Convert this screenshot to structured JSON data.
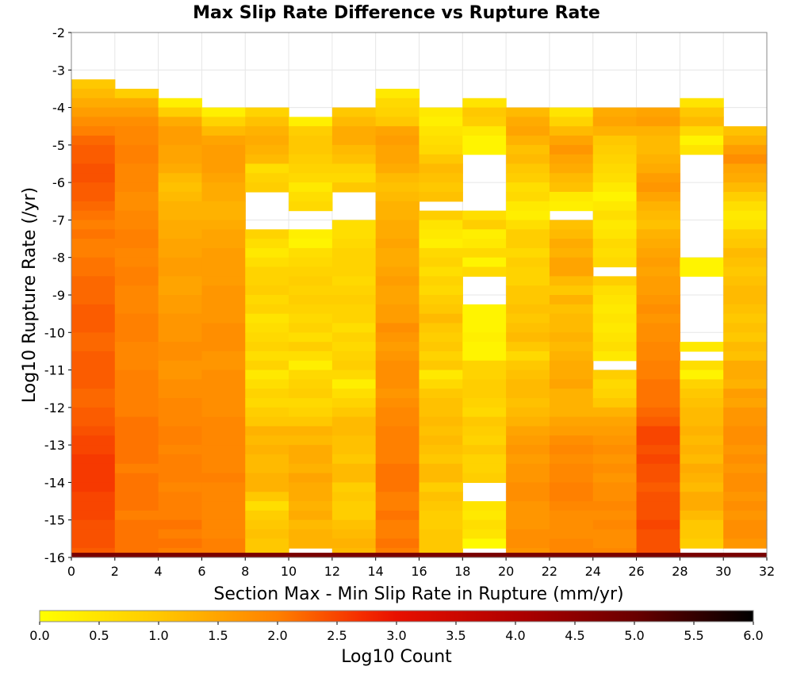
{
  "chart_data": {
    "type": "heatmap",
    "title": "Max Slip Rate Difference vs Rupture Rate",
    "xlabel": "Section Max - Min Slip Rate in Rupture (mm/yr)",
    "ylabel": "Log10 Rupture Rate (/yr)",
    "xlim": [
      0,
      32
    ],
    "ylim": [
      -16,
      -2
    ],
    "x_ticks": [
      "0",
      "2",
      "4",
      "6",
      "8",
      "10",
      "12",
      "14",
      "16",
      "18",
      "20",
      "22",
      "24",
      "26",
      "28",
      "30",
      "32"
    ],
    "y_ticks": [
      "-2",
      "-3",
      "-4",
      "-5",
      "-6",
      "-7",
      "-8",
      "-9",
      "-10",
      "-11",
      "-12",
      "-13",
      "-14",
      "-15",
      "-16"
    ],
    "grid": true,
    "x_bin_width": 2,
    "y_bin_height": 0.25,
    "x_bins": [
      1,
      3,
      5,
      7,
      9,
      11,
      13,
      15,
      17,
      19,
      21,
      23,
      25,
      27,
      29,
      31
    ],
    "columns": [
      {
        "x": 1,
        "y_top": -3.25,
        "values": [
          1.0,
          1.2,
          1.4,
          1.6,
          1.8,
          2.0,
          2.2,
          2.3,
          2.3,
          2.4,
          2.4,
          2.3,
          2.3,
          2.2,
          2.1,
          2.0,
          2.1,
          2.0,
          2.0,
          2.1,
          2.1,
          2.2,
          2.2,
          2.2,
          2.3,
          2.3,
          2.3,
          2.2,
          2.2,
          2.3,
          2.3,
          2.3,
          2.3,
          2.2,
          2.2,
          2.3,
          2.3,
          2.4,
          2.5,
          2.5,
          2.6,
          2.6,
          2.6,
          2.6,
          2.5,
          2.5,
          2.5,
          2.4,
          2.4,
          2.4,
          2.3
        ]
      },
      {
        "x": 3,
        "y_top": -3.5,
        "values": [
          0.9,
          1.4,
          1.6,
          1.8,
          1.9,
          1.9,
          2.0,
          2.0,
          1.9,
          1.9,
          1.9,
          1.8,
          1.8,
          1.9,
          1.9,
          2.0,
          2.0,
          1.9,
          1.9,
          2.0,
          2.0,
          1.9,
          1.9,
          1.9,
          2.0,
          2.0,
          2.0,
          1.9,
          1.9,
          1.9,
          2.0,
          2.0,
          2.0,
          2.0,
          2.0,
          2.1,
          2.1,
          2.1,
          2.1,
          2.1,
          2.0,
          2.1,
          2.1,
          2.1,
          2.1,
          2.0,
          2.1,
          2.1,
          2.1,
          2.1
        ]
      },
      {
        "x": 5,
        "y_top": -3.75,
        "values": [
          0.3,
          0.9,
          1.4,
          1.6,
          1.6,
          1.5,
          1.5,
          1.4,
          1.2,
          1.1,
          1.2,
          1.3,
          1.3,
          1.4,
          1.4,
          1.5,
          1.5,
          1.6,
          1.6,
          1.5,
          1.5,
          1.6,
          1.6,
          1.7,
          1.7,
          1.7,
          1.8,
          1.8,
          1.7,
          1.7,
          1.8,
          1.8,
          1.9,
          1.9,
          1.9,
          2.0,
          2.0,
          1.9,
          2.0,
          2.0,
          2.0,
          1.9,
          2.0,
          2.0,
          2.0,
          2.1,
          2.0,
          2.1,
          2.0
        ]
      },
      {
        "x": 7,
        "y_top": -4.0,
        "values": [
          0.3,
          0.8,
          1.2,
          1.5,
          1.6,
          1.6,
          1.6,
          1.5,
          1.4,
          1.4,
          1.3,
          1.3,
          1.4,
          1.5,
          1.5,
          1.6,
          1.6,
          1.6,
          1.6,
          1.7,
          1.7,
          1.7,
          1.7,
          1.8,
          1.8,
          1.8,
          1.7,
          1.7,
          1.8,
          1.8,
          1.8,
          1.8,
          1.8,
          1.9,
          1.9,
          1.9,
          1.9,
          1.9,
          1.9,
          2.0,
          1.9,
          1.9,
          1.9,
          1.9,
          1.9,
          1.9,
          2.0,
          2.0
        ]
      },
      {
        "x": 9,
        "y_top": -4.0,
        "values": [
          0.8,
          1.1,
          1.3,
          1.4,
          1.3,
          1.2,
          0.6,
          0.8,
          0.9,
          null,
          null,
          null,
          null,
          0.8,
          0.6,
          0.4,
          0.6,
          0.8,
          0.8,
          0.9,
          0.7,
          0.8,
          0.5,
          0.6,
          0.7,
          0.8,
          0.6,
          0.8,
          0.4,
          0.6,
          0.8,
          0.7,
          0.9,
          1.0,
          1.3,
          1.2,
          1.3,
          1.2,
          1.2,
          1.3,
          1.3,
          1.0,
          0.6,
          0.9,
          1.0,
          1.1,
          1.0,
          1.0
        ]
      },
      {
        "x": 11,
        "y_top": -4.25,
        "values": [
          0.3,
          0.9,
          1.0,
          1.0,
          0.9,
          0.8,
          0.7,
          0.4,
          0.6,
          0.7,
          null,
          null,
          0.3,
          0.2,
          0.6,
          0.7,
          0.8,
          0.9,
          0.8,
          0.9,
          0.8,
          0.7,
          0.8,
          0.6,
          0.9,
          0.6,
          0.3,
          0.7,
          0.8,
          0.9,
          0.7,
          0.8,
          1.0,
          1.3,
          1.2,
          1.4,
          1.4,
          1.3,
          1.5,
          1.4,
          1.4,
          1.3,
          1.4,
          1.2,
          1.3,
          1.3
        ]
      },
      {
        "x": 13,
        "y_top": -4.0,
        "values": [
          1.0,
          1.2,
          1.4,
          1.4,
          1.2,
          1.1,
          0.8,
          0.7,
          1.0,
          null,
          null,
          null,
          0.6,
          0.6,
          0.7,
          0.8,
          0.8,
          0.8,
          0.7,
          0.8,
          0.9,
          0.8,
          0.8,
          0.6,
          0.8,
          0.7,
          0.8,
          0.9,
          0.7,
          0.3,
          0.6,
          0.8,
          1.0,
          1.2,
          1.2,
          1.1,
          1.1,
          1.0,
          1.2,
          1.2,
          0.9,
          1.0,
          0.9,
          0.9,
          1.1,
          1.2,
          1.3,
          1.2
        ]
      },
      {
        "x": 15,
        "y_top": -3.5,
        "values": [
          0.4,
          0.7,
          0.8,
          1.0,
          1.5,
          1.6,
          1.5,
          1.5,
          1.4,
          1.2,
          1.1,
          1.2,
          1.3,
          1.3,
          1.4,
          1.4,
          1.5,
          1.4,
          1.4,
          1.5,
          1.6,
          1.5,
          1.5,
          1.6,
          1.6,
          1.8,
          1.7,
          1.6,
          1.7,
          1.8,
          1.8,
          1.8,
          1.7,
          1.8,
          1.9,
          1.9,
          2.0,
          2.0,
          2.0,
          2.0,
          2.1,
          2.1,
          2.1,
          2.0,
          2.0,
          2.1,
          2.0,
          2.0,
          2.1,
          2.0
        ]
      },
      {
        "x": 17,
        "y_top": -4.0,
        "values": [
          0.4,
          0.3,
          0.5,
          0.6,
          0.7,
          1.0,
          1.2,
          1.1,
          1.0,
          1.1,
          null,
          0.9,
          0.5,
          0.4,
          0.3,
          0.7,
          0.8,
          0.6,
          0.8,
          0.7,
          0.9,
          1.0,
          1.2,
          1.0,
          0.9,
          1.0,
          0.8,
          1.0,
          0.4,
          0.7,
          1.0,
          1.1,
          1.1,
          1.2,
          1.1,
          1.2,
          1.1,
          1.0,
          1.2,
          1.2,
          0.9,
          1.1,
          1.0,
          0.9,
          0.9,
          1.0,
          1.0,
          1.0
        ]
      },
      {
        "x": 19,
        "y_top": -3.75,
        "values": [
          0.5,
          1.0,
          0.9,
          0.4,
          0.2,
          0.2,
          null,
          null,
          null,
          null,
          null,
          null,
          0.6,
          0.9,
          0.3,
          0.4,
          0.7,
          0.2,
          0.7,
          null,
          null,
          null,
          0.2,
          0.2,
          0.2,
          0.3,
          0.2,
          0.2,
          0.8,
          0.8,
          0.9,
          0.9,
          0.8,
          0.7,
          1.0,
          0.9,
          0.8,
          1.0,
          0.8,
          0.8,
          0.9,
          null,
          null,
          0.5,
          0.4,
          0.6,
          0.5,
          0.1
        ]
      },
      {
        "x": 21,
        "y_top": -4.0,
        "values": [
          1.2,
          1.4,
          1.5,
          1.3,
          1.1,
          1.2,
          1.0,
          0.9,
          0.6,
          0.7,
          0.4,
          0.3,
          0.6,
          0.9,
          0.9,
          0.7,
          0.9,
          0.8,
          0.8,
          1.0,
          1.0,
          1.1,
          1.0,
          1.1,
          1.2,
          1.0,
          0.7,
          1.0,
          1.1,
          1.2,
          1.2,
          1.1,
          1.2,
          1.3,
          1.5,
          1.6,
          1.7,
          1.6,
          1.7,
          1.7,
          1.8,
          1.8,
          1.7,
          1.7,
          1.7,
          1.8,
          1.8,
          1.7
        ]
      },
      {
        "x": 23,
        "y_top": -4.0,
        "values": [
          0.5,
          0.8,
          1.2,
          1.5,
          1.7,
          1.5,
          1.4,
          1.2,
          1.1,
          0.4,
          0.3,
          null,
          1.1,
          1.2,
          1.4,
          1.3,
          1.5,
          1.5,
          1.2,
          1.0,
          1.3,
          1.1,
          1.2,
          1.2,
          1.3,
          1.2,
          1.3,
          1.4,
          1.4,
          1.5,
          1.3,
          1.3,
          1.3,
          1.5,
          1.6,
          1.8,
          1.9,
          1.8,
          1.9,
          1.9,
          2.0,
          2.0,
          1.9,
          1.8,
          1.8,
          1.8,
          1.9,
          1.9
        ]
      },
      {
        "x": 25,
        "y_top": -4.0,
        "values": [
          1.4,
          1.5,
          1.3,
          1.0,
          0.9,
          0.8,
          0.7,
          0.6,
          0.4,
          0.2,
          0.4,
          0.6,
          0.4,
          0.5,
          0.7,
          0.6,
          0.7,
          null,
          0.9,
          0.6,
          0.5,
          0.4,
          0.5,
          0.4,
          0.5,
          0.6,
          0.4,
          null,
          0.9,
          0.7,
          0.8,
          1.0,
          1.3,
          1.5,
          1.6,
          1.7,
          1.8,
          1.7,
          1.8,
          1.7,
          1.8,
          1.8,
          1.9,
          1.8,
          1.9,
          1.8,
          1.8,
          1.9
        ]
      },
      {
        "x": 27,
        "y_top": -4.0,
        "values": [
          1.5,
          1.6,
          1.3,
          1.2,
          1.2,
          1.3,
          1.4,
          1.6,
          1.7,
          1.5,
          1.3,
          1.2,
          1.1,
          1.3,
          1.4,
          1.5,
          1.6,
          1.5,
          1.6,
          1.6,
          1.7,
          1.8,
          1.7,
          1.8,
          1.8,
          1.9,
          1.9,
          2.0,
          2.0,
          2.1,
          2.1,
          2.1,
          2.2,
          2.3,
          2.5,
          2.5,
          2.4,
          2.5,
          2.4,
          2.4,
          2.3,
          2.4,
          2.4,
          2.4,
          2.5,
          2.4,
          2.4,
          2.4
        ]
      },
      {
        "x": 29,
        "y_top": -3.75,
        "values": [
          0.5,
          1.0,
          1.2,
          0.7,
          0.2,
          0.5,
          null,
          null,
          null,
          null,
          null,
          null,
          null,
          null,
          null,
          null,
          null,
          0.2,
          0.2,
          null,
          null,
          null,
          null,
          null,
          null,
          null,
          0.4,
          null,
          0.6,
          0.2,
          0.8,
          1.0,
          1.1,
          1.2,
          1.2,
          1.3,
          1.2,
          1.3,
          1.2,
          1.4,
          1.3,
          1.2,
          1.4,
          1.4,
          1.2,
          1.0,
          1.0,
          0.9
        ]
      },
      {
        "x": 31,
        "y_top": -4.5,
        "values": [
          1.1,
          1.3,
          1.6,
          1.8,
          1.5,
          1.4,
          1.2,
          0.9,
          0.6,
          0.4,
          0.5,
          0.9,
          1.0,
          1.2,
          1.1,
          1.0,
          1.1,
          1.2,
          1.2,
          1.1,
          1.0,
          1.1,
          1.0,
          1.2,
          1.1,
          1.4,
          1.4,
          1.3,
          1.6,
          1.5,
          1.7,
          1.7,
          1.8,
          1.8,
          1.7,
          1.8,
          1.7,
          1.8,
          1.8,
          1.7,
          1.8,
          1.7,
          1.8,
          1.8,
          1.7
        ]
      }
    ],
    "bottom_row": {
      "y_range": [
        -16,
        -15.875
      ],
      "value": 4.8
    },
    "colorbar": {
      "label": "Log10 Count",
      "range": [
        0,
        6
      ],
      "ticks": [
        "0.0",
        "0.5",
        "1.0",
        "1.5",
        "2.0",
        "2.5",
        "3.0",
        "3.5",
        "4.0",
        "4.5",
        "5.0",
        "5.5",
        "6.0"
      ],
      "stops": [
        {
          "v": 0.0,
          "color": "#ffff00"
        },
        {
          "v": 1.0,
          "color": "#ffc800"
        },
        {
          "v": 2.0,
          "color": "#ff8000"
        },
        {
          "v": 2.7,
          "color": "#f52d00"
        },
        {
          "v": 3.0,
          "color": "#e81000"
        },
        {
          "v": 4.0,
          "color": "#b00000"
        },
        {
          "v": 5.0,
          "color": "#6a0000"
        },
        {
          "v": 6.0,
          "color": "#000000"
        }
      ]
    }
  }
}
